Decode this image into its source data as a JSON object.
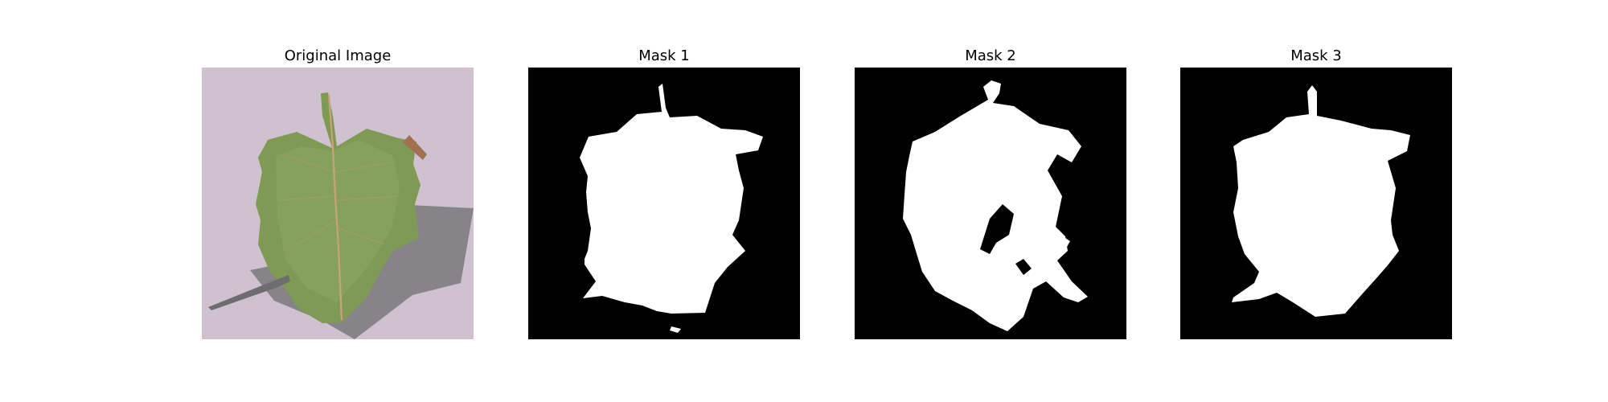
{
  "figure": {
    "background": "#ffffff",
    "panels": [
      {
        "title": "Original Image",
        "kind": "photo"
      },
      {
        "title": "Mask 1",
        "kind": "mask"
      },
      {
        "title": "Mask 2",
        "kind": "mask"
      },
      {
        "title": "Mask 3",
        "kind": "mask"
      }
    ],
    "colors": {
      "mask_background": "#000000",
      "mask_foreground": "#ffffff",
      "photo_background": "#cbbccb",
      "leaf_green": "#7e9a55",
      "leaf_shadow": "#6f6f72",
      "leaf_vein": "#c9a27a"
    }
  }
}
